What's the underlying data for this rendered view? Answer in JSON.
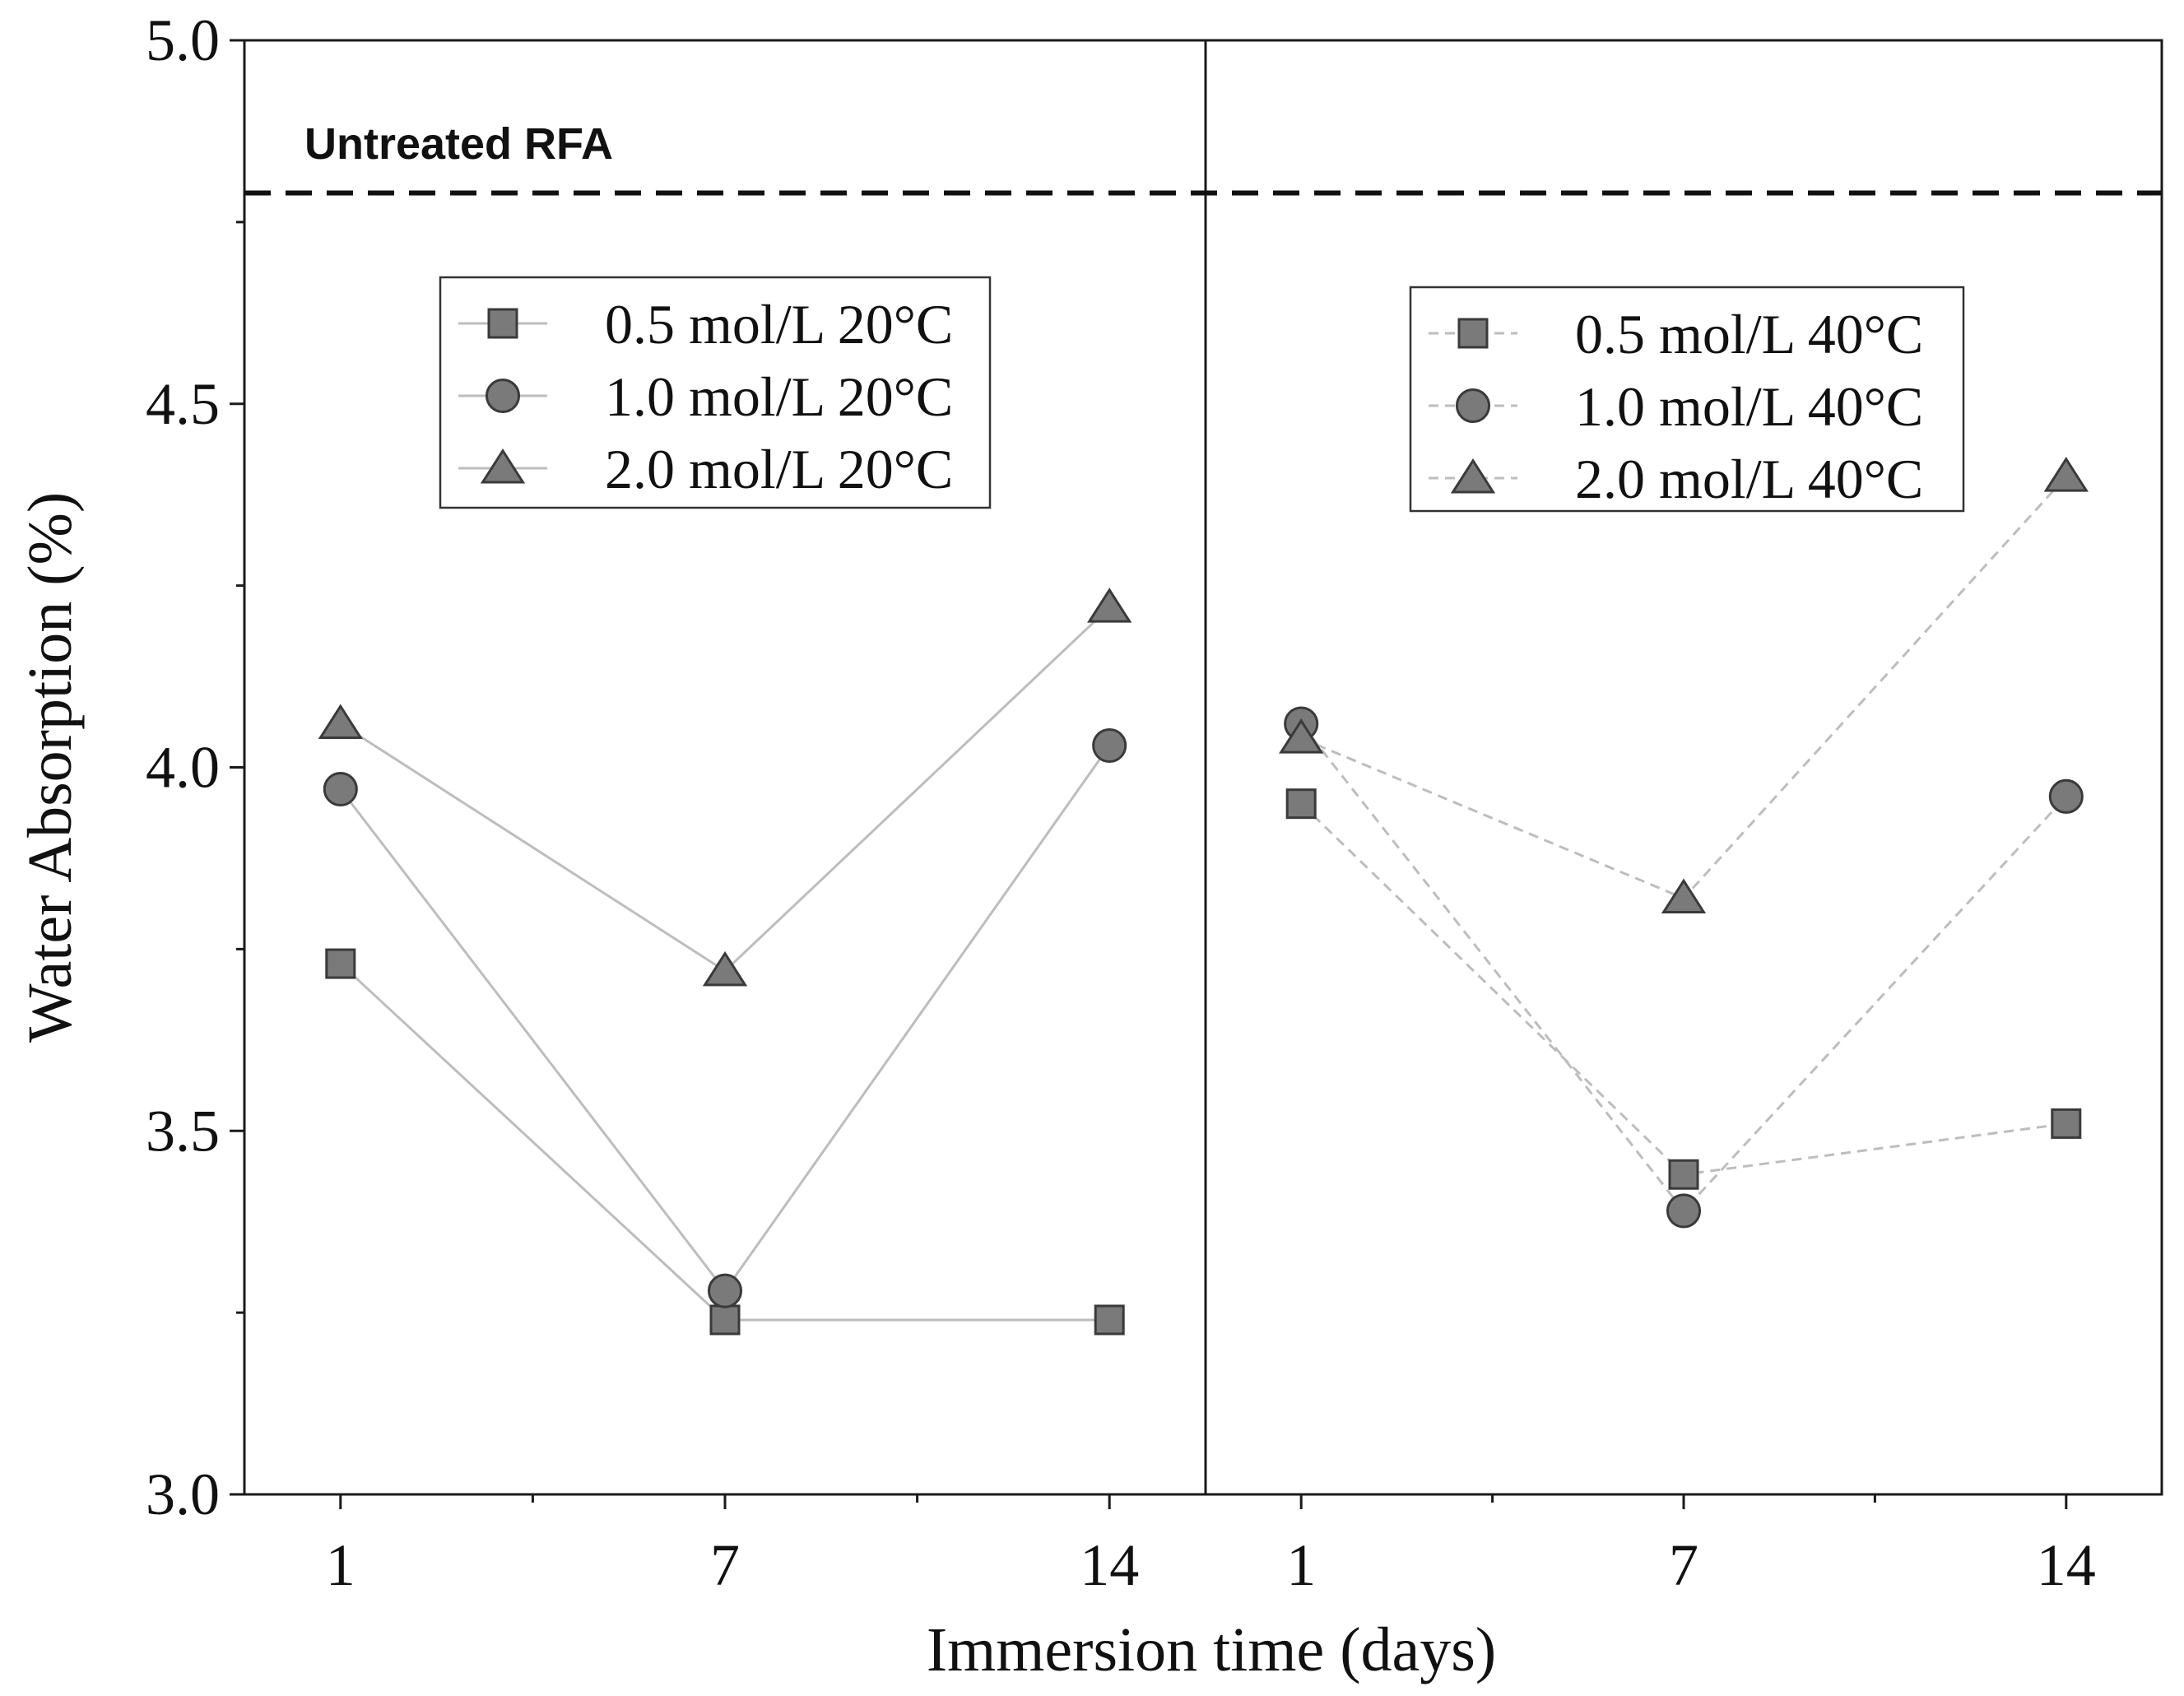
{
  "chart_data": {
    "type": "line",
    "title": "",
    "xlabel": "Immersion time (days)",
    "ylabel": "Water Absorption (%)",
    "ylim": [
      3.0,
      5.0
    ],
    "y_ticks": [
      3.0,
      3.5,
      4.0,
      4.5,
      5.0
    ],
    "y_tick_labels": [
      "3.0",
      "3.5",
      "4.0",
      "4.5",
      "5.0"
    ],
    "categories": [
      "1",
      "7",
      "14"
    ],
    "reference_line": {
      "label": "Untreated RFA",
      "value": 4.79,
      "style": "dashed"
    },
    "panels": [
      {
        "name": "20°C",
        "legend_position": "top-center",
        "line_style": "solid",
        "series": [
          {
            "name": "0.5 mol/L 20°C",
            "marker": "square",
            "values": [
              3.73,
              3.24,
              3.24
            ]
          },
          {
            "name": "1.0 mol/L 20°C",
            "marker": "circle",
            "values": [
              3.97,
              3.28,
              4.03
            ]
          },
          {
            "name": "2.0 mol/L 20°C",
            "marker": "triangle",
            "values": [
              4.06,
              3.72,
              4.22
            ]
          }
        ]
      },
      {
        "name": "40°C",
        "legend_position": "top-center",
        "line_style": "dashed",
        "series": [
          {
            "name": "0.5 mol/L 40°C",
            "marker": "square",
            "values": [
              3.95,
              3.44,
              3.51
            ]
          },
          {
            "name": "1.0 mol/L 40°C",
            "marker": "circle",
            "values": [
              4.06,
              3.39,
              3.96
            ]
          },
          {
            "name": "2.0 mol/L 40°C",
            "marker": "triangle",
            "values": [
              4.04,
              3.82,
              4.4
            ]
          }
        ]
      }
    ]
  },
  "colors": {
    "marker_fill": "#7a7a7a",
    "marker_stroke": "#3a3a3a",
    "series_line": "#bdbdbd",
    "axis": "#1a1a1a",
    "text": "#111111",
    "reference_line": "#111111"
  }
}
